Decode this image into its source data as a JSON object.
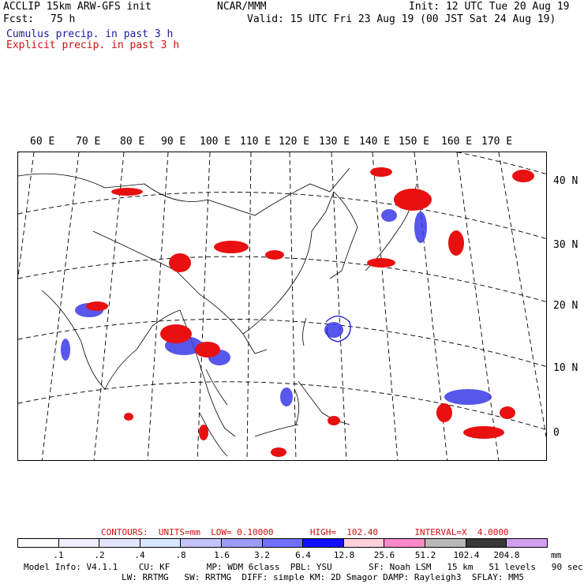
{
  "header": {
    "model_line": "ACCLIP 15km ARW-GFS init",
    "fcst_label": "Fcst:",
    "fcst_value": "75 h",
    "org": "NCAR/MMM",
    "init": "Init: 12 UTC Tue 20 Aug 19",
    "valid": "Valid: 15 UTC Fri 23 Aug 19 (00 JST Sat 24 Aug 19)",
    "legend_cumulus": "Cumulus precip. in past 3 h",
    "legend_explicit": "Explicit precip. in past 3 h"
  },
  "map": {
    "lon_labels": [
      "60 E",
      "70 E",
      "80 E",
      "90 E",
      "100 E",
      "110 E",
      "120 E",
      "130 E",
      "140 E",
      "150 E",
      "160 E",
      "170 E"
    ],
    "lat_labels": [
      "40 N",
      "30 N",
      "20 N",
      "10 N",
      "0"
    ],
    "cumulus_color": "#3030e0",
    "explicit_color": "#e01010"
  },
  "colorbar": {
    "contours_line": "CONTOURS:  UNITS=mm  LOW= 0.10000       HIGH=  102.40       INTERVAL=X  4.0000",
    "units": "mm",
    "tick_labels": [
      ".1",
      ".2",
      ".4",
      ".8",
      "1.6",
      "3.2",
      "6.4",
      "12.8",
      "25.6",
      "51.2",
      "102.4",
      "204.8"
    ],
    "colors": [
      "#ffffff",
      "#f0f0ff",
      "#e4e4ff",
      "#d8e8ff",
      "#c4c4ff",
      "#9c9cff",
      "#7070ff",
      "#1010ff",
      "#ffd0dc",
      "#ff88c8",
      "#b8b8b8",
      "#383838",
      "#d2a0f0"
    ]
  },
  "footer": {
    "line1": "Model Info: V4.1.1    CU: KF       MP: WDM 6class  PBL: YSU       SF: Noah LSM   15 km   51 levels   90 sec",
    "line2": "LW: RRTMG   SW: RRTMG  DIFF: simple KM: 2D Smagor DAMP: Rayleigh3  SFLAY: MM5"
  }
}
